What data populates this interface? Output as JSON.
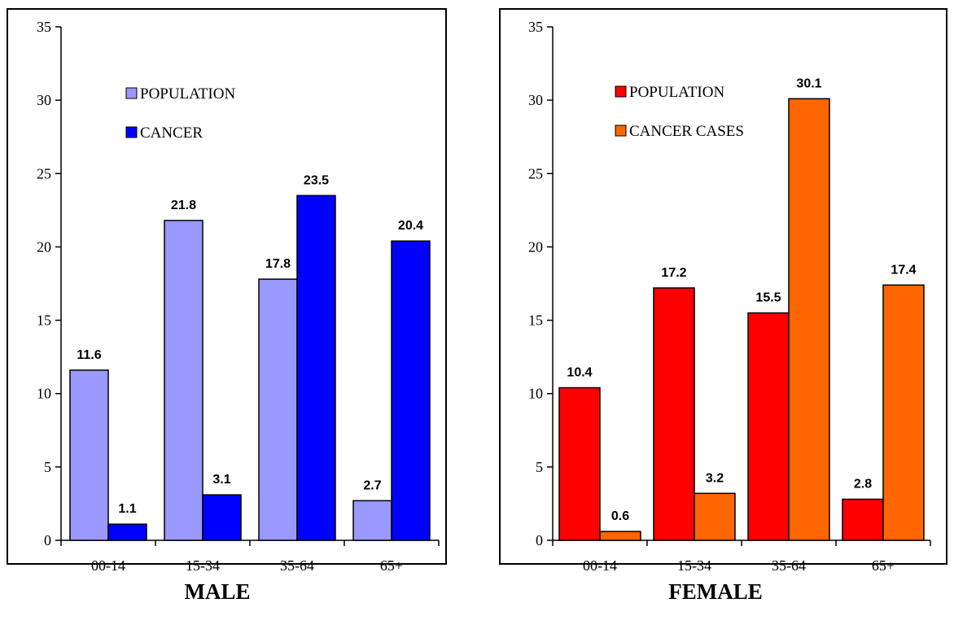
{
  "chart_data": [
    {
      "type": "bar",
      "title": "MALE",
      "categories": [
        "00-14",
        "15-34",
        "35-64",
        "65+"
      ],
      "series": [
        {
          "name": "POPULATION",
          "color": "#9999ff",
          "values": [
            11.6,
            21.8,
            17.8,
            2.7
          ]
        },
        {
          "name": "CANCER",
          "color": "#0000ff",
          "values": [
            1.1,
            3.1,
            23.5,
            20.4
          ]
        }
      ],
      "ylim": [
        0,
        35
      ],
      "yticks": [
        0,
        5,
        10,
        15,
        20,
        25,
        30,
        35
      ],
      "xlabel": "",
      "ylabel": "",
      "grid": false,
      "legend": "top-left"
    },
    {
      "type": "bar",
      "title": "FEMALE",
      "categories": [
        "00-14",
        "15-34",
        "35-64",
        "65+"
      ],
      "series": [
        {
          "name": "POPULATION",
          "color": "#ff0000",
          "values": [
            10.4,
            17.2,
            15.5,
            2.8
          ]
        },
        {
          "name": "CANCER CASES",
          "color": "#ff6600",
          "values": [
            0.6,
            3.2,
            30.1,
            17.4
          ]
        }
      ],
      "ylim": [
        0,
        35
      ],
      "yticks": [
        0,
        5,
        10,
        15,
        20,
        25,
        30,
        35
      ],
      "xlabel": "",
      "ylabel": "",
      "grid": false,
      "legend": "top-left"
    }
  ]
}
